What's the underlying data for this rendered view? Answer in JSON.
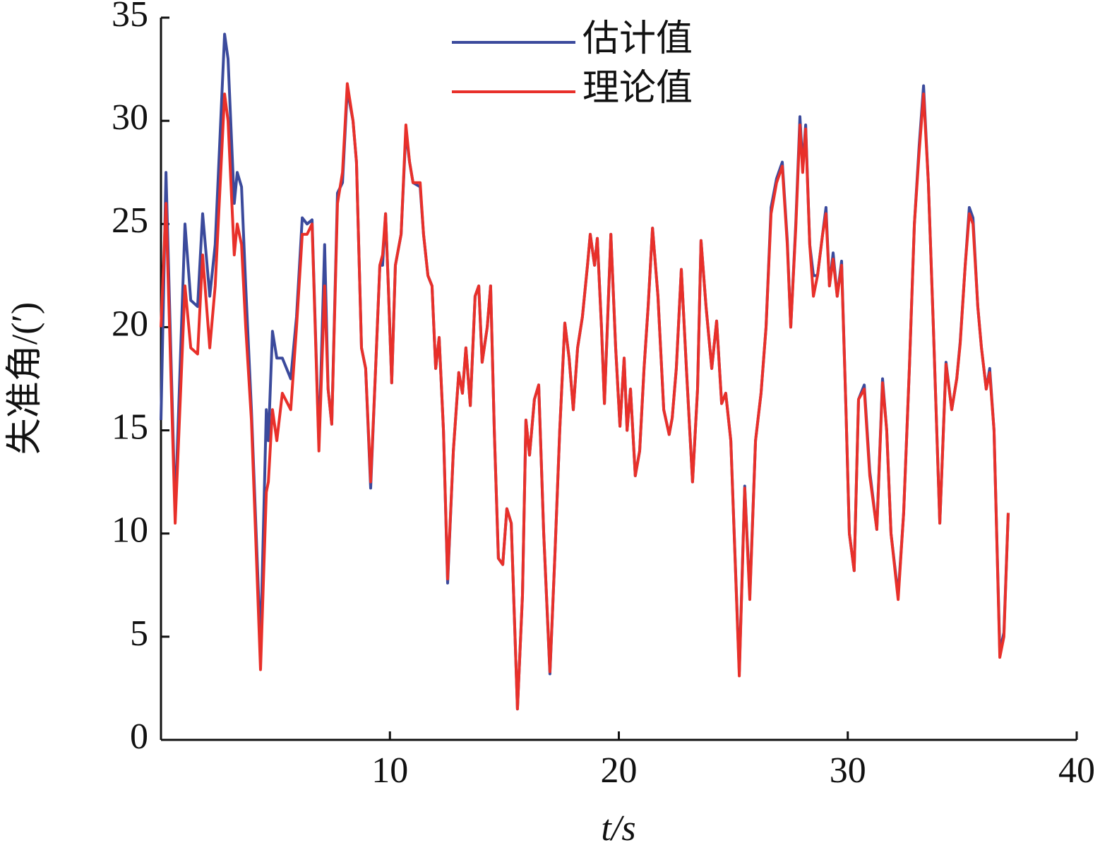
{
  "chart_data": {
    "type": "line",
    "xlabel": "t/s",
    "ylabel": "失准角/(′)",
    "x": [
      0,
      0.22,
      0.62,
      1.05,
      1.3,
      1.6,
      1.82,
      2.13,
      2.37,
      2.78,
      2.93,
      3.2,
      3.33,
      3.52,
      3.7,
      3.95,
      4.35,
      4.6,
      4.69,
      4.87,
      5.06,
      5.3,
      5.67,
      5.92,
      6.17,
      6.38,
      6.6,
      6.9,
      7.15,
      7.3,
      7.46,
      7.71,
      7.93,
      8.14,
      8.39,
      8.54,
      8.76,
      8.94,
      9.16,
      9.375,
      9.56,
      9.68,
      9.81,
      9.93,
      10.08,
      10.24,
      10.49,
      10.7,
      10.86,
      11.01,
      11.32,
      11.47,
      11.66,
      11.84,
      12.0,
      12.15,
      12.34,
      12.52,
      12.77,
      13.01,
      13.17,
      13.32,
      13.51,
      13.72,
      13.88,
      14.03,
      14.25,
      14.4,
      14.56,
      14.74,
      14.93,
      15.11,
      15.3,
      15.57,
      15.79,
      15.94,
      16.1,
      16.31,
      16.5,
      16.72,
      16.99,
      17.21,
      17.42,
      17.64,
      17.83,
      18.01,
      18.2,
      18.41,
      18.63,
      18.75,
      18.94,
      19.06,
      19.24,
      19.37,
      19.65,
      19.86,
      20.05,
      20.23,
      20.36,
      20.51,
      20.72,
      20.91,
      21.1,
      21.28,
      21.47,
      21.71,
      21.96,
      22.2,
      22.33,
      22.51,
      22.73,
      22.95,
      23.22,
      23.44,
      23.59,
      23.81,
      24.06,
      24.27,
      24.49,
      24.67,
      24.89,
      25.26,
      25.5,
      25.72,
      25.97,
      26.21,
      26.43,
      26.65,
      26.89,
      27.14,
      27.36,
      27.51,
      27.73,
      27.91,
      28.03,
      28.16,
      28.34,
      28.5,
      28.68,
      28.9,
      29.05,
      29.2,
      29.36,
      29.54,
      29.73,
      29.92,
      30.07,
      30.28,
      30.47,
      30.72,
      30.96,
      31.27,
      31.52,
      31.7,
      31.89,
      32.2,
      32.44,
      32.69,
      32.91,
      33.12,
      33.31,
      33.52,
      33.74,
      34.02,
      34.29,
      34.54,
      34.76,
      34.91,
      35.13,
      35.31,
      35.47,
      35.68,
      35.84,
      36.05,
      36.2,
      36.39,
      36.64,
      36.82,
      37.01
    ],
    "series": [
      {
        "name": "估计值",
        "color": "#3b4a9c",
        "values": [
          15.5,
          27.5,
          11,
          25,
          21.3,
          21,
          25.5,
          21.5,
          24,
          34.2,
          33,
          26,
          27.5,
          26.8,
          22,
          16,
          4.5,
          16,
          14.5,
          19.8,
          18.5,
          18.5,
          17.5,
          20.5,
          25.3,
          25,
          25.2,
          14.3,
          24,
          17,
          15.3,
          26.5,
          27,
          31.5,
          30,
          28,
          19,
          18,
          12.2,
          18,
          23,
          23,
          25.5,
          22,
          17.3,
          23,
          24.5,
          29.5,
          28,
          27,
          26.8,
          24.5,
          22.5,
          22,
          18,
          19.5,
          15,
          7.6,
          14,
          17.8,
          16.8,
          19,
          16.2,
          21.5,
          22,
          18.3,
          20,
          22,
          15,
          8.8,
          8.5,
          11.2,
          10.5,
          1.5,
          7,
          15.5,
          13.8,
          16.5,
          17.2,
          10,
          3.2,
          9,
          15,
          20.2,
          18.5,
          16,
          19,
          20.5,
          23,
          24.5,
          23,
          24.3,
          20,
          16.3,
          24.5,
          19,
          15.2,
          18.5,
          15,
          17,
          12.8,
          14,
          18,
          21,
          24.8,
          21.5,
          16,
          14.8,
          15.6,
          18,
          22.8,
          18,
          12.5,
          17,
          24.2,
          21,
          18,
          20.3,
          16.3,
          16.8,
          14.5,
          3.3,
          12.3,
          7,
          14.5,
          16.8,
          20,
          25.8,
          27.2,
          28,
          24.2,
          20,
          25,
          30.2,
          27.8,
          29.8,
          24,
          22.5,
          22.5,
          24.5,
          25.8,
          22,
          23.6,
          21.5,
          23.2,
          16,
          10,
          8.2,
          16.5,
          17.2,
          13,
          10.2,
          17.5,
          15,
          10,
          7,
          11,
          18,
          25,
          28.8,
          31.7,
          27,
          20,
          10.5,
          18.3,
          16,
          17.5,
          19.3,
          23,
          25.8,
          25.3,
          21,
          19,
          17,
          18,
          15,
          4.3,
          5.2,
          11
        ]
      },
      {
        "name": "理论值",
        "color": "#e8302a",
        "values": [
          20,
          26,
          10.5,
          22,
          19,
          18.7,
          23.5,
          19,
          22,
          31.3,
          30,
          23.5,
          25,
          24,
          20,
          15.5,
          3.4,
          12,
          12.5,
          16,
          14.5,
          16.8,
          16,
          20,
          24.5,
          24.5,
          25,
          14,
          22,
          17,
          15.3,
          26,
          27.5,
          31.8,
          30,
          28,
          19,
          18,
          12.5,
          18,
          23,
          23.5,
          25.5,
          22,
          17.3,
          23,
          24.5,
          29.8,
          28,
          27,
          27,
          24.5,
          22.5,
          22,
          18,
          19.5,
          15,
          7.8,
          14,
          17.8,
          16.8,
          19,
          16.2,
          21.5,
          22,
          18.3,
          20,
          22,
          15,
          8.8,
          8.5,
          11.2,
          10.5,
          1.5,
          7,
          15.5,
          13.8,
          16.5,
          17.2,
          10,
          3.3,
          9,
          15,
          20.2,
          18.5,
          16,
          19,
          20.5,
          23,
          24.5,
          23,
          24.3,
          20,
          16.3,
          24.5,
          19,
          15.2,
          18.5,
          15,
          17,
          12.8,
          14,
          18,
          21,
          24.8,
          21.5,
          16,
          14.8,
          15.6,
          18,
          22.8,
          18,
          12.5,
          17,
          24.2,
          21,
          18,
          20.3,
          16.3,
          16.8,
          14.5,
          3.1,
          12.2,
          6.8,
          14.5,
          16.8,
          20,
          25.5,
          27,
          27.8,
          24,
          20,
          24.8,
          29.8,
          27.5,
          29.6,
          24,
          21.5,
          22.5,
          24.5,
          25.5,
          22,
          23.3,
          21.5,
          23,
          16,
          10,
          8.2,
          16.5,
          17,
          12.8,
          10.2,
          17.3,
          15,
          10,
          6.8,
          11,
          18,
          25,
          28.5,
          31.3,
          27,
          20,
          10.5,
          18.2,
          16,
          17.5,
          19.2,
          23,
          25.5,
          25,
          21,
          19,
          17,
          17.8,
          15,
          4,
          5,
          11
        ]
      }
    ],
    "xlim": [
      0,
      40
    ],
    "xticks": [
      10,
      20,
      30,
      40
    ],
    "ylim": [
      0,
      35
    ],
    "yticks": [
      0,
      5,
      10,
      15,
      20,
      25,
      30,
      35
    ],
    "legend": "top"
  }
}
